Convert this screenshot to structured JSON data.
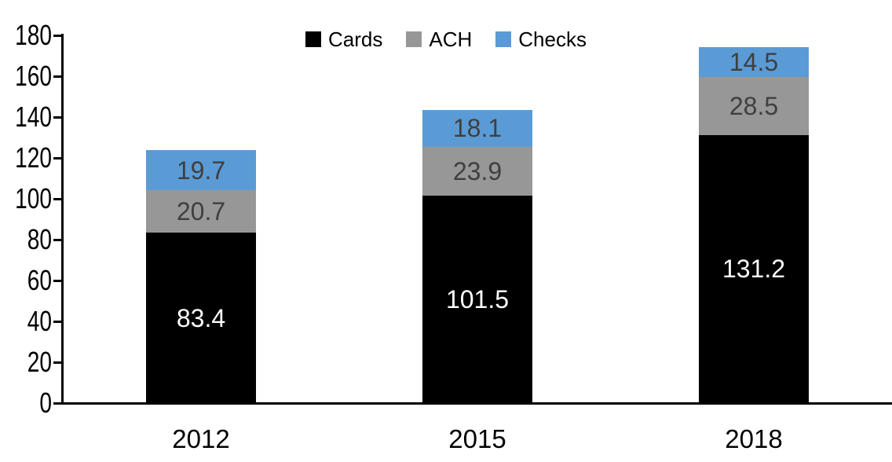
{
  "chart_data": {
    "type": "bar",
    "stacked": true,
    "categories": [
      "2012",
      "2015",
      "2018"
    ],
    "series": [
      {
        "name": "Cards",
        "values": [
          83.4,
          101.5,
          131.2
        ],
        "color": "#000000",
        "label_color": "#FFFFFF"
      },
      {
        "name": "ACH",
        "values": [
          20.7,
          23.9,
          28.5
        ],
        "color": "#979797",
        "label_color": "#3F3F3F"
      },
      {
        "name": "Checks",
        "values": [
          19.7,
          18.1,
          14.5
        ],
        "color": "#5B9BD5",
        "label_color": "#3F3F3F"
      }
    ],
    "totals": [
      123.8,
      143.5,
      174.2
    ],
    "ylim": [
      0,
      180
    ],
    "yticks": [
      0,
      20,
      40,
      60,
      80,
      100,
      120,
      140,
      160,
      180
    ],
    "grid": false,
    "legend_position": "top-center",
    "axis_color": "#000000",
    "background_color": "#FFFFFF"
  }
}
